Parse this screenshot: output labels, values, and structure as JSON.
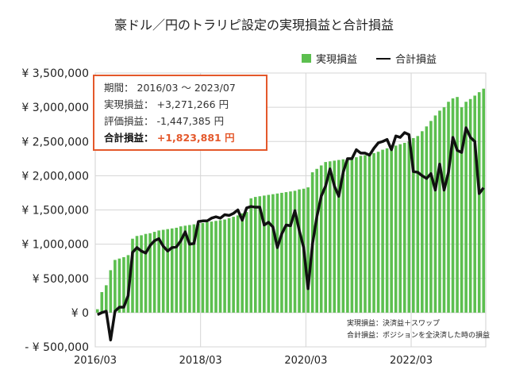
{
  "chart_data": {
    "type": "bar+line",
    "title": "豪ドル／円のトラリピ設定の実現損益と合計損益",
    "xlabel": "",
    "ylabel": "",
    "ylim": [
      -500000,
      3500000
    ],
    "grid": true,
    "legend_position": "top-right",
    "y_ticks": [
      3500000,
      3000000,
      2500000,
      2000000,
      1500000,
      1000000,
      500000,
      0,
      -500000
    ],
    "y_tick_labels": [
      "¥ 3,500,000",
      "¥ 3,000,000",
      "¥ 2,500,000",
      "¥ 2,000,000",
      "¥ 1,500,000",
      "¥ 1,000,000",
      "¥ 500,000",
      "¥ 0",
      "- ¥ 500,000"
    ],
    "x_tick_labels": [
      "2016/03",
      "2018/03",
      "2020/03",
      "2022/03"
    ],
    "x_start": "2016/03",
    "x_end": "2023/07",
    "series": [
      {
        "name": "実現損益",
        "type": "bar",
        "color": "#5cbf4f",
        "values": [
          50000,
          300000,
          400000,
          620000,
          770000,
          790000,
          810000,
          840000,
          1080000,
          1120000,
          1130000,
          1150000,
          1160000,
          1180000,
          1200000,
          1210000,
          1220000,
          1230000,
          1240000,
          1260000,
          1270000,
          1280000,
          1290000,
          1300000,
          1310000,
          1320000,
          1330000,
          1340000,
          1350000,
          1360000,
          1380000,
          1400000,
          1420000,
          1450000,
          1470000,
          1670000,
          1690000,
          1700000,
          1710000,
          1720000,
          1730000,
          1740000,
          1750000,
          1760000,
          1770000,
          1780000,
          1800000,
          1810000,
          1830000,
          2050000,
          2100000,
          2150000,
          2200000,
          2210000,
          2220000,
          2230000,
          2240000,
          2250000,
          2260000,
          2270000,
          2290000,
          2300000,
          2310000,
          2330000,
          2350000,
          2380000,
          2400000,
          2420000,
          2440000,
          2460000,
          2480000,
          2500000,
          2550000,
          2580000,
          2650000,
          2720000,
          2800000,
          2880000,
          2950000,
          3000000,
          3080000,
          3130000,
          3150000,
          3000000,
          3080000,
          3120000,
          3170000,
          3220000,
          3271266
        ]
      },
      {
        "name": "合計損益",
        "type": "line",
        "color": "#111111",
        "values": [
          -30000,
          0,
          20000,
          -400000,
          20000,
          80000,
          80000,
          250000,
          880000,
          950000,
          900000,
          870000,
          980000,
          1050000,
          1080000,
          970000,
          900000,
          950000,
          960000,
          1050000,
          1180000,
          1000000,
          1010000,
          1330000,
          1340000,
          1340000,
          1380000,
          1400000,
          1380000,
          1430000,
          1420000,
          1450000,
          1500000,
          1350000,
          1530000,
          1550000,
          1540000,
          1540000,
          1280000,
          1320000,
          1250000,
          950000,
          1150000,
          1280000,
          1270000,
          1490000,
          1200000,
          950000,
          350000,
          1000000,
          1400000,
          1700000,
          1850000,
          2100000,
          1850000,
          1700000,
          2050000,
          2250000,
          2250000,
          2380000,
          2330000,
          2330000,
          2300000,
          2400000,
          2480000,
          2500000,
          2530000,
          2380000,
          2580000,
          2560000,
          2630000,
          2600000,
          2060000,
          2050000,
          2000000,
          1960000,
          2030000,
          1790000,
          2170000,
          1790000,
          2050000,
          2560000,
          2370000,
          2340000,
          2700000,
          2560000,
          2500000,
          1740000,
          1823881
        ]
      }
    ],
    "annotations": [
      "実現損益：決済益＋スワップ",
      "合計損益：ポジションを全決済した時の損益"
    ]
  },
  "infobox": {
    "period_label": "期間：",
    "period_value": "2016/03 ～ 2023/07",
    "realized_label": "実現損益：",
    "realized_value": "+3,271,266 円",
    "unrealized_label": "評価損益：",
    "unrealized_value": "-1,447,385 円",
    "total_label": "合計損益：",
    "total_value": "+1,823,881 円"
  }
}
